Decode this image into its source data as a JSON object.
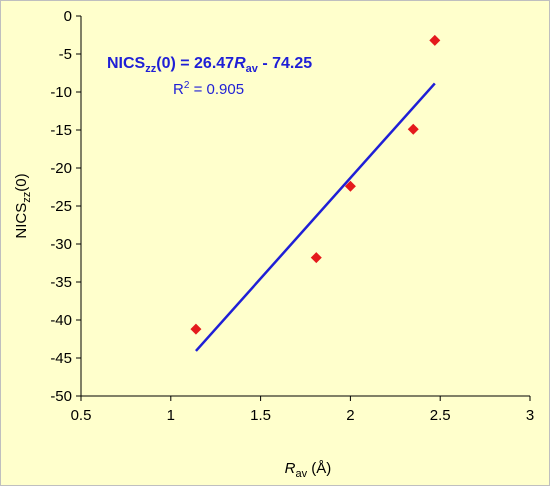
{
  "chart_data": {
    "type": "scatter",
    "title": "",
    "xlabel": {
      "main": "R",
      "sub": "av",
      "suffix": " (Å)"
    },
    "ylabel": {
      "main": "NICS",
      "sub": "zz",
      "suffix": "(0)"
    },
    "xlim": [
      0.5,
      3
    ],
    "ylim": [
      -50,
      0
    ],
    "xticks": [
      0.5,
      1,
      1.5,
      2,
      2.5,
      3
    ],
    "yticks": [
      0,
      -5,
      -10,
      -15,
      -20,
      -25,
      -30,
      -35,
      -40,
      -45,
      -50
    ],
    "xtick_labels": [
      "0.5",
      "1",
      "1.5",
      "2",
      "2.5",
      "3"
    ],
    "ytick_labels": [
      "0",
      "-5",
      "-10",
      "-15",
      "-20",
      "-25",
      "-30",
      "-35",
      "-40",
      "-45",
      "-50"
    ],
    "series": [
      {
        "x": [
          1.14,
          1.81,
          2.0,
          2.35,
          2.47
        ],
        "y": [
          -41.2,
          -31.8,
          -22.4,
          -14.9,
          -3.2
        ],
        "marker": "diamond",
        "color": "#e41a1c"
      }
    ],
    "trendline": {
      "slope": 26.47,
      "intercept": -74.25,
      "x_range": [
        1.14,
        2.47
      ],
      "color": "#1f1fd6"
    },
    "annotations": {
      "equation": {
        "lhs_main": "NICS",
        "lhs_sub": "zz",
        "lhs_suffix": "(0) = 26.47",
        "var_main": "R",
        "var_sub": "av",
        "tail": " - 74.25"
      },
      "r2": {
        "prefix": "R",
        "sup": "2",
        "value": " = 0.905"
      }
    },
    "grid": false,
    "legend": "none",
    "plot_background": "#ffffcc",
    "outer_background": "#ffffcc",
    "outer_border": "#bfbfbf"
  }
}
